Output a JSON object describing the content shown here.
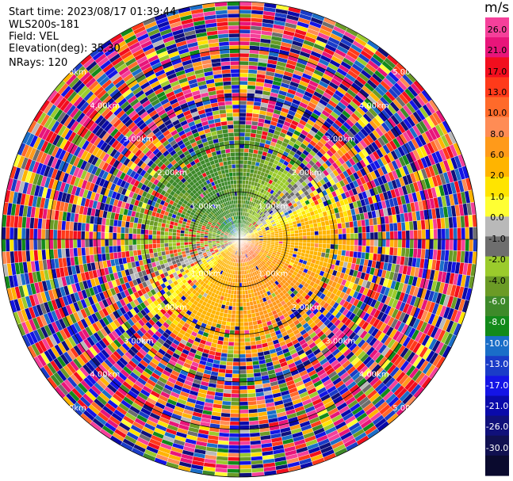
{
  "info": {
    "start_time": "Start time: 2023/08/17 01:39:44",
    "instrument": "WLS200s-181",
    "field": "Field: VEL",
    "elevation": "Elevation(deg): 35.30",
    "nrays": "NRays: 120"
  },
  "colorbar": {
    "unit": "m/s",
    "colors": [
      "#f5409a",
      "#e8157a",
      "#f20e1e",
      "#ff3a1a",
      "#ff6a2a",
      "#ff8c55",
      "#ff9a1a",
      "#ffb400",
      "#ffe400",
      "#ffff33",
      "#b9b9b9",
      "#6e6e6e",
      "#9bcb2c",
      "#6b9b26",
      "#3e8a2a",
      "#128a1a",
      "#1a6ec8",
      "#1a3cc8",
      "#1414e6",
      "#0a0aaa",
      "#10107a",
      "#101050",
      "#0a0a2e"
    ],
    "tick_labels": [
      "26.0",
      "21.0",
      "17.0",
      "13.0",
      "10.0",
      "8.0",
      "6.0",
      "2.0",
      "1.0",
      "0.0",
      "-1.0",
      "-2.0",
      "-4.0",
      "-6.0",
      "-8.0",
      "-10.0",
      "-13.0",
      "-17.0",
      "-21.0",
      "-26.0",
      "-30.0"
    ]
  },
  "chart_data": {
    "type": "heatmap",
    "subtype": "ppi-polar",
    "field": "VEL",
    "units": "m/s",
    "vmin": -30.0,
    "vmax": 30.0,
    "nrays": 120,
    "range_ring_labels": [
      "1.00km",
      "2.00km",
      "3.00km",
      "4.00km",
      "5.00km"
    ],
    "grid": true,
    "legend_placement": "right",
    "near_field_pattern": {
      "north": "negative (green/blue, -2 to -8 m/s)",
      "south": "positive (yellow/orange, 2 to 13 m/s)",
      "east": "positive (yellow, 1 to 6 m/s)",
      "west": "mixed green with red patches",
      "outer_ranges": "noise (all colors)"
    }
  }
}
